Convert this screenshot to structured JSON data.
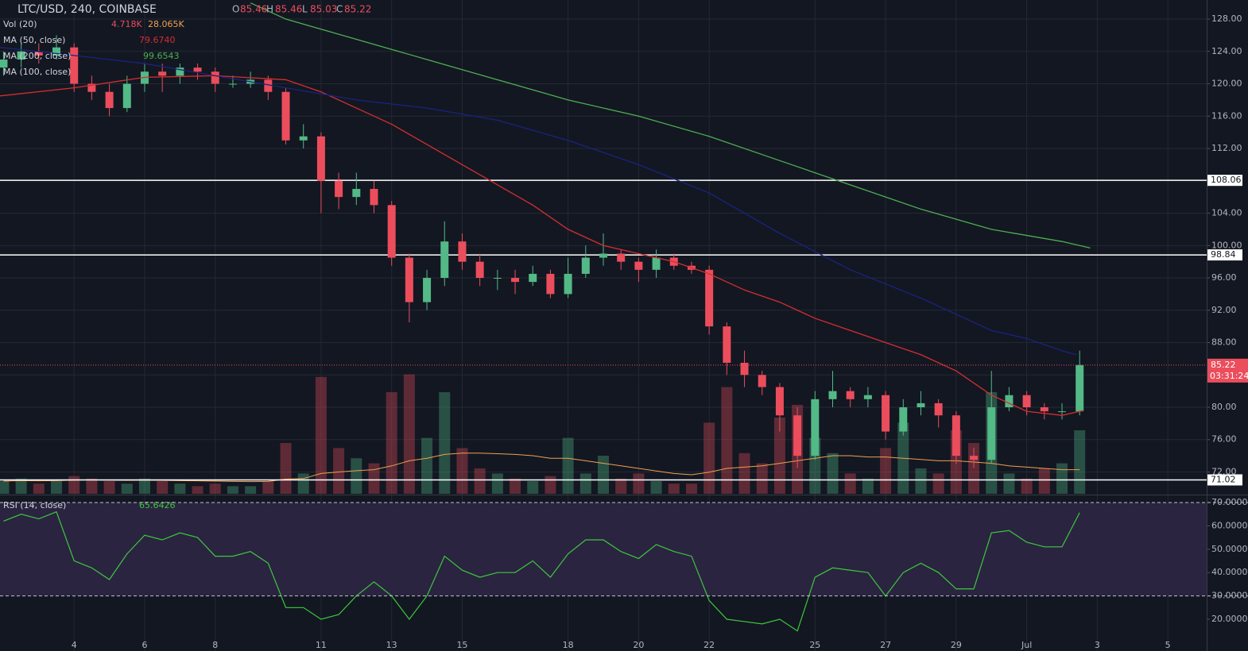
{
  "header": {
    "symbol": "LTC/USD, 240, COINBASE",
    "o_label": "O",
    "open": 85.46,
    "h_label": "H",
    "high": 85.46,
    "l_label": "L",
    "low": 85.03,
    "c_label": "C"
  },
  "chart_data": [
    {
      "type": "candlestick",
      "up_color": "#53b987",
      "down_color": "#eb4d5c",
      "grid": true,
      "x": [
        2,
        2.5,
        3,
        3.5,
        4,
        4.5,
        5,
        5.5,
        6,
        6.5,
        7,
        7.5,
        8,
        8.5,
        9,
        9.5,
        10,
        10.5,
        11,
        11.5,
        12,
        12.5,
        13,
        13.5,
        14,
        14.5,
        15,
        15.5,
        16,
        16.5,
        17,
        17.5,
        18,
        18.5,
        19,
        19.5,
        20,
        20.5,
        21,
        21.5,
        22,
        22.5,
        23,
        23.5,
        24,
        24.5,
        25,
        25.5,
        26,
        26.5,
        27,
        27.5,
        28,
        28.5,
        29,
        29.5,
        30,
        30.5,
        31,
        31.5,
        32,
        32.5
      ],
      "open": [
        122,
        123,
        124,
        123.5,
        124.5,
        120,
        119,
        117,
        120,
        121.5,
        121,
        122,
        121.5,
        120,
        120,
        120.5,
        119,
        113,
        113.5,
        108,
        106,
        107,
        105,
        98.5,
        93,
        96,
        100.5,
        98,
        96,
        96,
        95.5,
        96.5,
        94,
        96.5,
        98.5,
        99,
        98,
        97,
        98.5,
        97.5,
        97,
        90,
        85.5,
        84,
        82.5,
        79,
        74,
        81,
        82,
        81,
        81.5,
        77,
        80,
        80.5,
        79,
        74,
        73.5,
        80,
        81.5,
        80,
        79.5,
        79.5
      ],
      "high": [
        124,
        125,
        125,
        126,
        125,
        121,
        120,
        121,
        122.5,
        122.5,
        122.5,
        122.5,
        122,
        121,
        121.5,
        121,
        119.5,
        115,
        114,
        109,
        109,
        108,
        105.5,
        99,
        97,
        103,
        101.5,
        99,
        97,
        97,
        97.5,
        97,
        98.5,
        100,
        101.5,
        99.5,
        98.5,
        99.5,
        99,
        98,
        97.5,
        90.5,
        87,
        84.5,
        83,
        80,
        82,
        84.5,
        82.5,
        82.5,
        82,
        81,
        82,
        81,
        79.5,
        75,
        84.5,
        82.5,
        82,
        80.5,
        80.5,
        87
      ],
      "low": [
        121,
        122,
        122.5,
        123,
        119,
        118,
        116,
        116.5,
        119,
        119,
        120,
        120.5,
        119,
        119.5,
        119.5,
        118,
        112.5,
        112,
        104,
        104.5,
        105,
        104,
        97.5,
        90.5,
        92,
        95,
        97,
        95,
        94.5,
        94,
        95,
        93.5,
        93.5,
        96,
        97.5,
        97,
        95.5,
        96,
        97,
        96.5,
        89,
        84,
        82.5,
        81.5,
        77,
        72.5,
        73.5,
        80,
        80,
        80,
        76,
        76.5,
        79,
        77.5,
        73,
        72.5,
        73,
        79.5,
        79,
        78.5,
        78.5,
        79
      ],
      "close": [
        123,
        124,
        123.5,
        124.5,
        120,
        119,
        117,
        120,
        121.5,
        121,
        122,
        121.5,
        120,
        120,
        120.5,
        119,
        113,
        113.5,
        108,
        106,
        107,
        105,
        98.5,
        93,
        96,
        100.5,
        98,
        96,
        96,
        95.5,
        96.5,
        94,
        96.5,
        98.5,
        99,
        98,
        97,
        98.5,
        97.5,
        97,
        90,
        85.5,
        84,
        82.5,
        79,
        74,
        81,
        82,
        81,
        81.5,
        77,
        80,
        80.5,
        79,
        74,
        73.5,
        80,
        81.5,
        80,
        79.5,
        79.5,
        85.22
      ],
      "xlim": [
        1.9,
        36.1
      ],
      "xticks": [
        4,
        6,
        8,
        11,
        13,
        15,
        18,
        20,
        22,
        25,
        27,
        29,
        {
          "value": 31,
          "label": "Jul"
        },
        {
          "value": 33,
          "label": "3"
        },
        {
          "value": 35,
          "label": "5"
        }
      ],
      "ylim": [
        69.3,
        130.36
      ],
      "yticks": [
        {
          "value": 72,
          "label": "72.00"
        },
        {
          "value": 76,
          "label": "76.00"
        },
        {
          "value": 80,
          "label": "80.00"
        },
        {
          "value": 84,
          "label": "84.00"
        },
        {
          "value": 88,
          "label": "88.00"
        },
        {
          "value": 92,
          "label": "92.00"
        },
        {
          "value": 96,
          "label": "96.00"
        },
        {
          "value": 100,
          "label": "100.00"
        },
        {
          "value": 104,
          "label": "104.00"
        },
        {
          "value": 108,
          "label": "108.00"
        },
        {
          "value": 112,
          "label": "112.00"
        },
        {
          "value": 116,
          "label": "116.00"
        },
        {
          "value": 120,
          "label": "120.00"
        },
        {
          "value": 124,
          "label": "124.00"
        },
        {
          "value": 128,
          "label": "128.00"
        }
      ],
      "levels": [
        108.06,
        98.84,
        71.02
      ],
      "countdown": "03:31:24",
      "volume": {
        "name": "Vol (20)",
        "ylim": [
          0,
          50
        ],
        "ma_color": "#f0a050",
        "legend_values": [
          {
            "value": 4.718,
            "label": "4.718K"
          },
          {
            "value": 28.065,
            "label": "28.065K"
          }
        ],
        "values": [
          5,
          6,
          4,
          5,
          7,
          6,
          5,
          4,
          6,
          5,
          4,
          3,
          4,
          3,
          3,
          5,
          20,
          8,
          46,
          18,
          14,
          12,
          40,
          47,
          22,
          40,
          18,
          10,
          8,
          6,
          5,
          7,
          22,
          8,
          15,
          6,
          8,
          5,
          4,
          4,
          28,
          42,
          16,
          12,
          30,
          35,
          22,
          16,
          8,
          6,
          18,
          28,
          10,
          8,
          25,
          20,
          40,
          8,
          6,
          10,
          12,
          25
        ],
        "ma": [
          5,
          5.2,
          5.1,
          5.2,
          5.4,
          5.5,
          5.4,
          5.3,
          5.4,
          5.3,
          5.2,
          5.1,
          5,
          4.9,
          4.8,
          4.9,
          5.8,
          6,
          8,
          8.6,
          9.1,
          9.5,
          11,
          13,
          14,
          15.5,
          16,
          16,
          15.8,
          15.5,
          15,
          14,
          14,
          13,
          12,
          11,
          10,
          9,
          8,
          7.5,
          8.5,
          10,
          10.5,
          11,
          12,
          13,
          14,
          15,
          15,
          14.5,
          14.5,
          14,
          13.5,
          13,
          13,
          12.5,
          12,
          11,
          10.5,
          10,
          9.5,
          9.5
        ]
      },
      "ma_lines": [
        {
          "name": "MA (50, close)",
          "color": "#d32f2f",
          "legend_value": {
            "value": 79.674,
            "label": "79.6740"
          },
          "x": [
            1.9,
            4,
            6,
            8,
            10,
            11,
            12,
            13,
            14,
            15,
            16,
            17,
            18,
            19,
            20,
            21,
            22,
            23,
            24,
            25,
            26,
            27,
            28,
            29,
            30,
            31,
            32,
            32.6
          ],
          "values": [
            118.5,
            119.5,
            120.8,
            121,
            120.5,
            119,
            117,
            115,
            112.5,
            110,
            107.5,
            105,
            102,
            100,
            99,
            98,
            96.5,
            94.5,
            93,
            91,
            89.5,
            88,
            86.5,
            84.5,
            81.5,
            79.5,
            79,
            79.6
          ]
        },
        {
          "name": "MA (200, close)",
          "color": "#4caf50",
          "legend_value": {
            "value": 99.6543,
            "label": "99.6543"
          },
          "x": [
            9,
            10,
            12,
            14,
            16,
            18,
            20,
            22,
            24,
            26,
            28,
            30,
            32,
            32.8
          ],
          "values": [
            130,
            128,
            125.5,
            123,
            120.5,
            118,
            116,
            113.5,
            110.5,
            107.5,
            104.5,
            102,
            100.5,
            99.7
          ]
        },
        {
          "name": "MA (100, close)",
          "color": "#1a237e",
          "x": [
            1.9,
            4,
            6,
            8,
            10,
            12,
            14,
            16,
            18,
            20,
            22,
            24,
            26,
            28,
            30,
            31,
            32,
            32.4
          ],
          "values": [
            124.5,
            123.5,
            122.5,
            121,
            119.5,
            118,
            117,
            115.5,
            113,
            110,
            106.5,
            101.5,
            97,
            93.5,
            89.5,
            88.5,
            87,
            86.5
          ]
        }
      ]
    },
    {
      "type": "line",
      "name": "RSI (14, close)",
      "color": "#3cc83c",
      "bands": [
        30,
        70
      ],
      "band_fill": "#2a2440",
      "ylim": [
        6.4,
        72.7
      ],
      "yticks": [
        {
          "value": 20,
          "label": "20.0000"
        },
        {
          "value": 30,
          "label": "30.0000"
        },
        {
          "value": 40,
          "label": "40.0000"
        },
        {
          "value": 50,
          "label": "50.0000"
        },
        {
          "value": 60,
          "label": "60.0000"
        },
        {
          "value": 70,
          "label": "70.0000"
        }
      ],
      "values": [
        62,
        65,
        63,
        66,
        45,
        42,
        37,
        48,
        56,
        54,
        57,
        55,
        47,
        47,
        49,
        44,
        25,
        25,
        20,
        22,
        30,
        36,
        30,
        20,
        30,
        47,
        41,
        38,
        40,
        40,
        45,
        38,
        48,
        54,
        54,
        49,
        46,
        52,
        49,
        47,
        28,
        20,
        19,
        18,
        20,
        15,
        38,
        42,
        41,
        40,
        30,
        40,
        44,
        40,
        33,
        33,
        57,
        58,
        53,
        51,
        51,
        65.6426
      ]
    }
  ]
}
